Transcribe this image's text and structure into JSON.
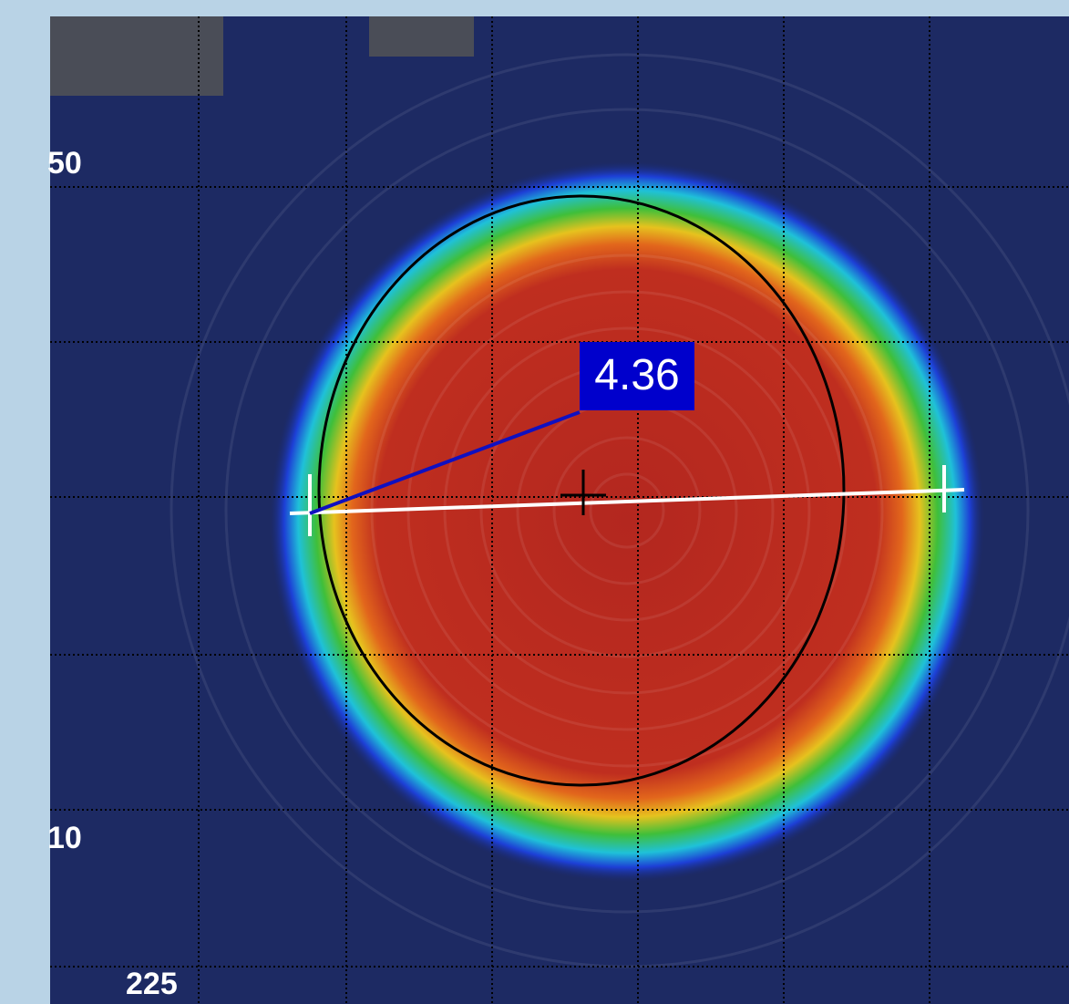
{
  "axis_labels": {
    "upper": "50",
    "lower": "10",
    "bottom": "225"
  },
  "measurement": {
    "label": "4.36"
  }
}
